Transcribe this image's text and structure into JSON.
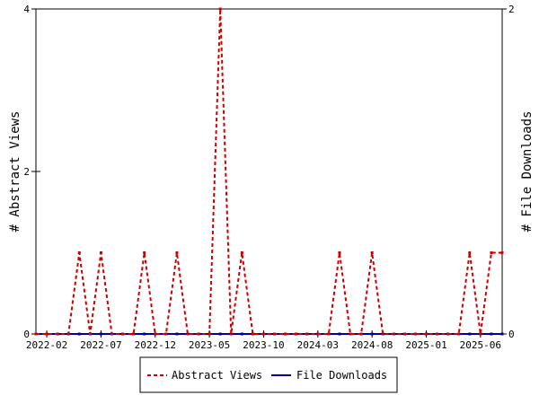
{
  "chart_data": {
    "type": "line",
    "title": "",
    "ylabel": "# Abstract Views",
    "ylabel_right": "# File Downloads",
    "ylim": [
      0,
      4
    ],
    "ylim_right": [
      0,
      2
    ],
    "y_ticks": [
      "0",
      "2",
      "4"
    ],
    "y_ticks_right": [
      "0",
      "2"
    ],
    "x_ticks": [
      "2022-02",
      "2022-07",
      "2022-12",
      "2023-05",
      "2023-10",
      "2024-03",
      "2024-08",
      "2025-01",
      "2025-06"
    ],
    "x": [
      "2022-01",
      "2022-02",
      "2022-03",
      "2022-04",
      "2022-05",
      "2022-06",
      "2022-07",
      "2022-08",
      "2022-09",
      "2022-10",
      "2022-11",
      "2022-12",
      "2023-01",
      "2023-02",
      "2023-03",
      "2023-04",
      "2023-05",
      "2023-06",
      "2023-07",
      "2023-08",
      "2023-09",
      "2023-10",
      "2023-11",
      "2023-12",
      "2024-01",
      "2024-02",
      "2024-03",
      "2024-04",
      "2024-05",
      "2024-06",
      "2024-07",
      "2024-08",
      "2024-09",
      "2024-10",
      "2024-11",
      "2024-12",
      "2025-01",
      "2025-02",
      "2025-03",
      "2025-04",
      "2025-05",
      "2025-06",
      "2025-07",
      "2025-08"
    ],
    "series": [
      {
        "name": "Abstract Views",
        "axis": "left",
        "color": "#cc0000",
        "values": [
          0,
          0,
          0,
          0,
          1,
          0,
          1,
          0,
          0,
          0,
          1,
          0,
          0,
          1,
          0,
          0,
          0,
          4,
          0,
          1,
          0,
          0,
          0,
          0,
          0,
          0,
          0,
          0,
          1,
          0,
          0,
          1,
          0,
          0,
          0,
          0,
          0,
          0,
          0,
          0,
          1,
          0,
          1,
          1
        ]
      },
      {
        "name": "File Downloads",
        "axis": "right",
        "color": "#000099",
        "values": [
          0,
          0,
          0,
          0,
          0,
          0,
          0,
          0,
          0,
          0,
          0,
          0,
          0,
          0,
          0,
          0,
          0,
          0,
          0,
          0,
          0,
          0,
          0,
          0,
          0,
          0,
          0,
          0,
          0,
          0,
          0,
          0,
          0,
          0,
          0,
          0,
          0,
          0,
          0,
          0,
          0,
          0,
          0,
          0
        ]
      }
    ],
    "grid": false,
    "legend_position": "bottom"
  }
}
